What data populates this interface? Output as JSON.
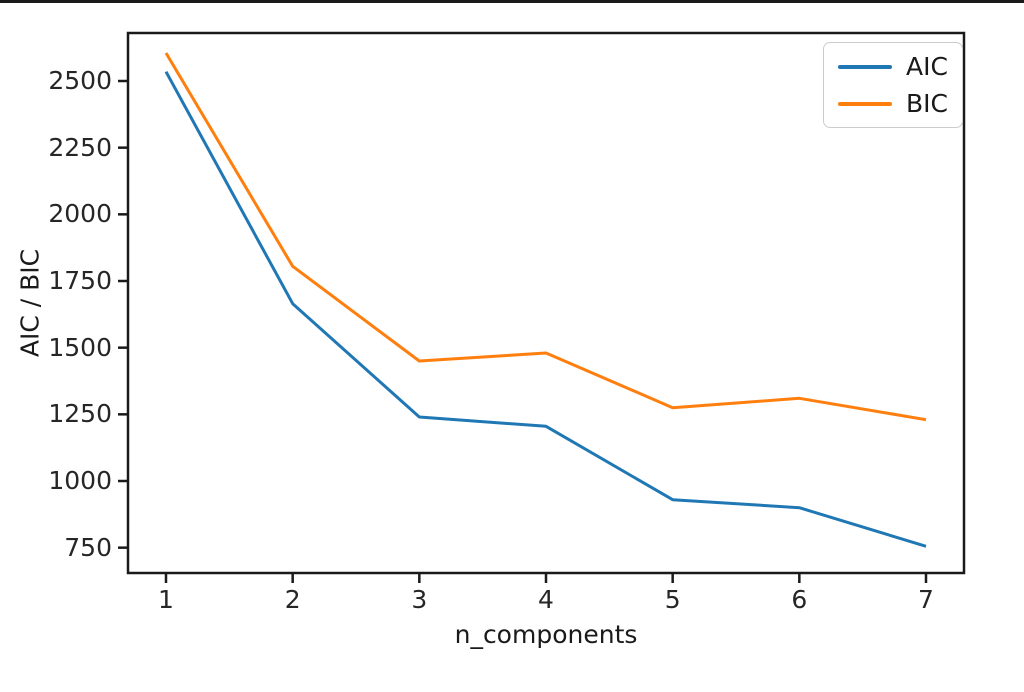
{
  "figure": {
    "background": "#ffffff",
    "top_border_color": "#1a1a1a"
  },
  "chart_data": {
    "type": "line",
    "title": "",
    "xlabel": "n_components",
    "ylabel": "AIC / BIC",
    "x": [
      1,
      2,
      3,
      4,
      5,
      6,
      7
    ],
    "series": [
      {
        "name": "AIC",
        "color": "#1f77b4",
        "values": [
          2535,
          1665,
          1240,
          1205,
          930,
          900,
          755
        ]
      },
      {
        "name": "BIC",
        "color": "#ff7f0e",
        "values": [
          2605,
          1805,
          1450,
          1480,
          1275,
          1310,
          1230
        ]
      }
    ],
    "xticks": [
      1,
      2,
      3,
      4,
      5,
      6,
      7
    ],
    "yticks": [
      750,
      1000,
      1250,
      1500,
      1750,
      2000,
      2250,
      2500
    ],
    "xlim": [
      0.7,
      7.3
    ],
    "ylim": [
      655,
      2680
    ],
    "grid": false,
    "legend": {
      "position": "upper right",
      "entries": [
        "AIC",
        "BIC"
      ]
    },
    "axis_color": "#1a1a1a",
    "tick_label_color": "#262626",
    "line_width": 3
  }
}
